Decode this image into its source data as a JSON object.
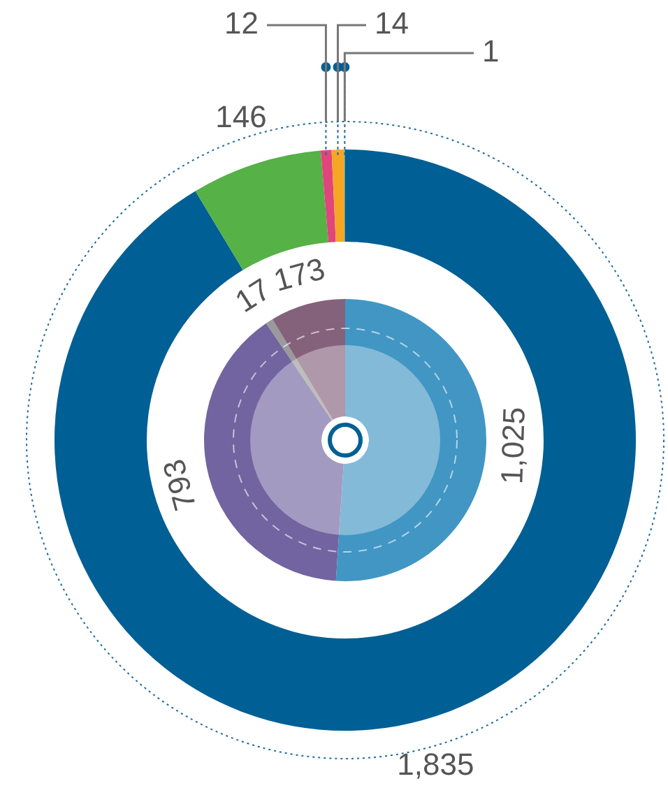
{
  "chart_data": [
    {
      "type": "donut",
      "categories": [
        null,
        null,
        null,
        null,
        null
      ],
      "values": [
        1835,
        146,
        12,
        14,
        1
      ],
      "colors": [
        "#005f94",
        "#56b146",
        "#e0457b",
        "#f5a623",
        "#3f9fa8"
      ],
      "value_labels": [
        "1,835",
        "146",
        "12",
        "14",
        "1"
      ]
    },
    {
      "type": "donut",
      "categories": [
        null,
        null,
        null,
        null
      ],
      "values": [
        1025,
        793,
        17,
        173
      ],
      "colors": [
        "#4196c4",
        "#7264a0",
        "#9a9a9a",
        "#84627c"
      ],
      "value_labels": [
        "1,025",
        "793",
        "17",
        "173"
      ]
    }
  ]
}
